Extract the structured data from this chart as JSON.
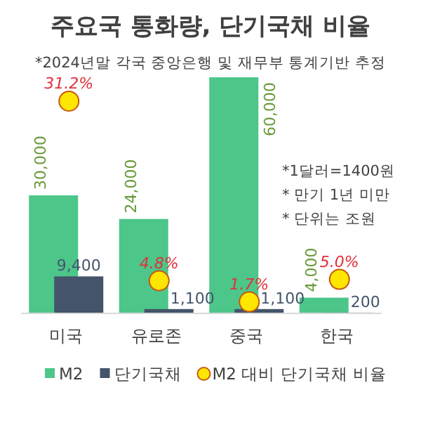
{
  "chart_data": {
    "type": "bar",
    "title": "주요국 통화량, 단기국채 비율",
    "subtitle": "*2024년말 각국 중앙은행 및 재무부 통계기반 추정",
    "annotations": [
      "*1달러=1400원",
      "* 만기 1년 미만",
      "* 단위는 조원"
    ],
    "categories": [
      "미국",
      "유로존",
      "중국",
      "한국"
    ],
    "series": [
      {
        "name": "M2",
        "color": "#4dc68a",
        "values": [
          30000,
          24000,
          60000,
          4000
        ],
        "value_labels": [
          "30,000",
          "24,000",
          "60,000",
          "4,000"
        ]
      },
      {
        "name": "단기국채",
        "color": "#44546a",
        "values": [
          9400,
          1100,
          1100,
          200
        ],
        "value_labels": [
          "9,400",
          "1,100",
          "1,100",
          "200"
        ]
      },
      {
        "name": "M2 대비 단기국채 비율",
        "type": "scatter",
        "axis": "y2",
        "color": "#ffe600",
        "marker": "circle",
        "values": [
          31.2,
          4.8,
          1.7,
          5.0
        ],
        "value_labels": [
          "31.2%",
          "4.8%",
          "1.7%",
          "5.0%"
        ]
      }
    ],
    "tick_labels": "x",
    "legend": "bottom"
  }
}
